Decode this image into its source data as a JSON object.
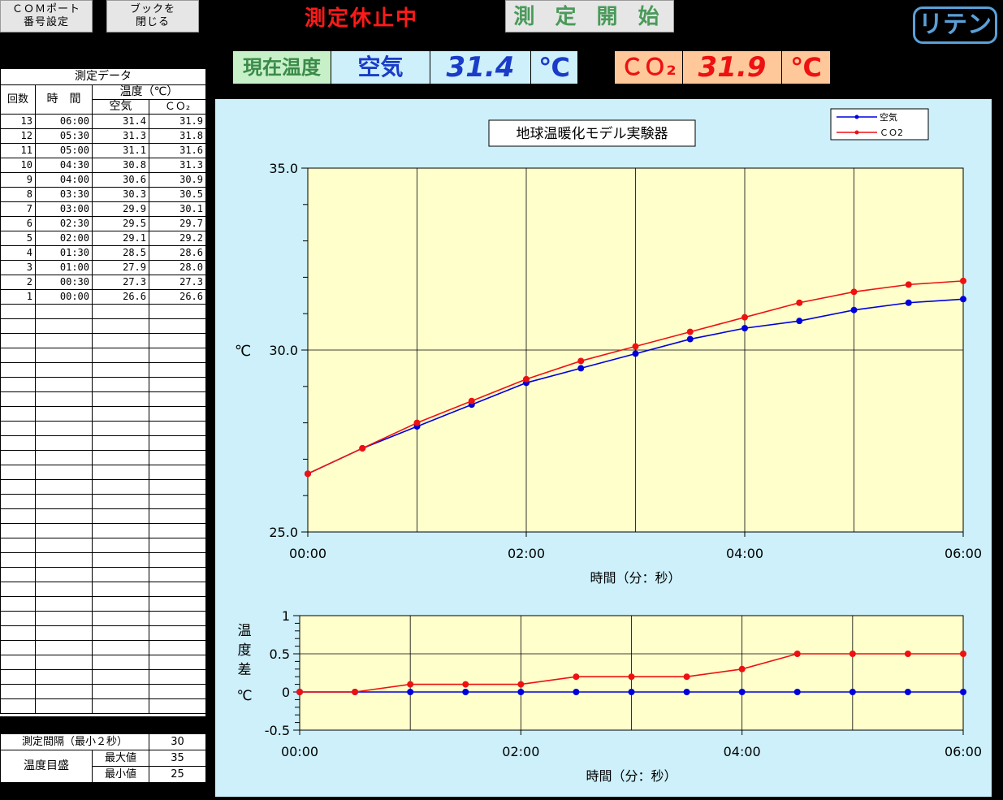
{
  "toolbar": {
    "com_port_line1": "ＣＯＭポート",
    "com_port_line2": "番号設定",
    "close_book_line1": "ブックを",
    "close_book_line2": "閉じる",
    "status": "測定休止中",
    "start_label": "測 定 開 始",
    "logo": "リテン"
  },
  "readout": {
    "current_temp_label": "現在温度",
    "air_label": "空気",
    "air_value": "31.4",
    "air_unit": "℃",
    "co2_label": "ＣＯ₂",
    "co2_value": "31.9",
    "co2_unit": "℃"
  },
  "table": {
    "title": "測定データ",
    "col_count": "回数",
    "col_time": "時　間",
    "col_temp": "温度（℃）",
    "col_air": "空気",
    "col_co2": "ＣＯ₂",
    "rows": [
      {
        "n": "13",
        "time": "06:00",
        "air": "31.4",
        "co2": "31.9"
      },
      {
        "n": "12",
        "time": "05:30",
        "air": "31.3",
        "co2": "31.8"
      },
      {
        "n": "11",
        "time": "05:00",
        "air": "31.1",
        "co2": "31.6"
      },
      {
        "n": "10",
        "time": "04:30",
        "air": "30.8",
        "co2": "31.3"
      },
      {
        "n": "9",
        "time": "04:00",
        "air": "30.6",
        "co2": "30.9"
      },
      {
        "n": "8",
        "time": "03:30",
        "air": "30.3",
        "co2": "30.5"
      },
      {
        "n": "7",
        "time": "03:00",
        "air": "29.9",
        "co2": "30.1"
      },
      {
        "n": "6",
        "time": "02:30",
        "air": "29.5",
        "co2": "29.7"
      },
      {
        "n": "5",
        "time": "02:00",
        "air": "29.1",
        "co2": "29.2"
      },
      {
        "n": "4",
        "time": "01:30",
        "air": "28.5",
        "co2": "28.6"
      },
      {
        "n": "3",
        "time": "01:00",
        "air": "27.9",
        "co2": "28.0"
      },
      {
        "n": "2",
        "time": "00:30",
        "air": "27.3",
        "co2": "27.3"
      },
      {
        "n": "1",
        "time": "00:00",
        "air": "26.6",
        "co2": "26.6"
      }
    ]
  },
  "settings": {
    "interval_label": "測定間隔（最小２秒）",
    "interval_value": "30",
    "scale_label": "温度目盛",
    "max_label": "最大値",
    "max_value": "35",
    "min_label": "最小値",
    "min_value": "25"
  },
  "chart_data": [
    {
      "type": "line",
      "title": "地球温暖化モデル実験器",
      "xlabel": "時間（分：秒）",
      "ylabel": "℃",
      "x": [
        "00:00",
        "00:30",
        "01:00",
        "01:30",
        "02:00",
        "02:30",
        "03:00",
        "03:30",
        "04:00",
        "04:30",
        "05:00",
        "05:30",
        "06:00"
      ],
      "xticks": [
        "00:00",
        "02:00",
        "04:00",
        "06:00"
      ],
      "yticks": [
        "25.0",
        "30.0",
        "35.0"
      ],
      "ylim": [
        25,
        35
      ],
      "grid": true,
      "legend": "top-right",
      "series": [
        {
          "name": "空気",
          "color": "#0000dd",
          "values": [
            26.6,
            27.3,
            27.9,
            28.5,
            29.1,
            29.5,
            29.9,
            30.3,
            30.6,
            30.8,
            31.1,
            31.3,
            31.4
          ]
        },
        {
          "name": "ＣＯ2",
          "color": "#ee1111",
          "values": [
            26.6,
            27.3,
            28.0,
            28.6,
            29.2,
            29.7,
            30.1,
            30.5,
            30.9,
            31.3,
            31.6,
            31.8,
            31.9
          ]
        }
      ]
    },
    {
      "type": "line",
      "xlabel": "時間（分：秒）",
      "ylabel": "温度差℃",
      "ylabel_lines": [
        "温",
        "度",
        "差",
        "",
        "℃"
      ],
      "x": [
        "00:00",
        "00:30",
        "01:00",
        "01:30",
        "02:00",
        "02:30",
        "03:00",
        "03:30",
        "04:00",
        "04:30",
        "05:00",
        "05:30",
        "06:00"
      ],
      "xticks": [
        "00:00",
        "02:00",
        "04:00",
        "06:00"
      ],
      "yticks": [
        "-0.5",
        "0",
        "0.5",
        "1"
      ],
      "ylim": [
        -0.5,
        1
      ],
      "grid": true,
      "series": [
        {
          "color": "#0000dd",
          "values": [
            0,
            0,
            0,
            0,
            0,
            0,
            0,
            0,
            0,
            0,
            0,
            0,
            0
          ]
        },
        {
          "color": "#ee1111",
          "values": [
            0,
            0,
            0.1,
            0.1,
            0.1,
            0.2,
            0.2,
            0.2,
            0.3,
            0.5,
            0.5,
            0.5,
            0.5
          ]
        }
      ]
    }
  ]
}
